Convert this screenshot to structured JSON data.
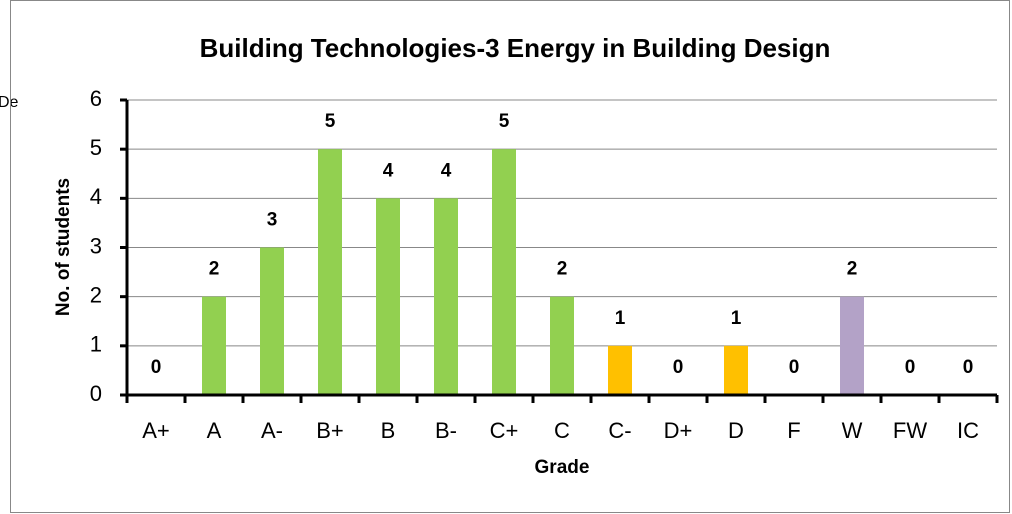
{
  "chart_data": {
    "type": "bar",
    "title": "Building Technologies-3 Energy in Building Design",
    "annotation": "De",
    "x_label": "Grade",
    "y_label": "No. of students",
    "categories": [
      "A+",
      "A",
      "A-",
      "B+",
      "B",
      "B-",
      "C+",
      "C",
      "C-",
      "D+",
      "D",
      "F",
      "W",
      "FW",
      "IC"
    ],
    "values": [
      0,
      2,
      3,
      5,
      4,
      4,
      5,
      2,
      1,
      0,
      1,
      0,
      2,
      0,
      0
    ],
    "colors": [
      "#92d050",
      "#92d050",
      "#92d050",
      "#92d050",
      "#92d050",
      "#92d050",
      "#92d050",
      "#92d050",
      "#ffc000",
      "#ffc000",
      "#ffc000",
      "#b3a2c7",
      "#b3a2c7",
      "#b3a2c7",
      "#b3a2c7"
    ],
    "ylim": [
      0,
      6
    ],
    "yticks": [
      0,
      1,
      2,
      3,
      4,
      5,
      6
    ],
    "grid": true
  }
}
